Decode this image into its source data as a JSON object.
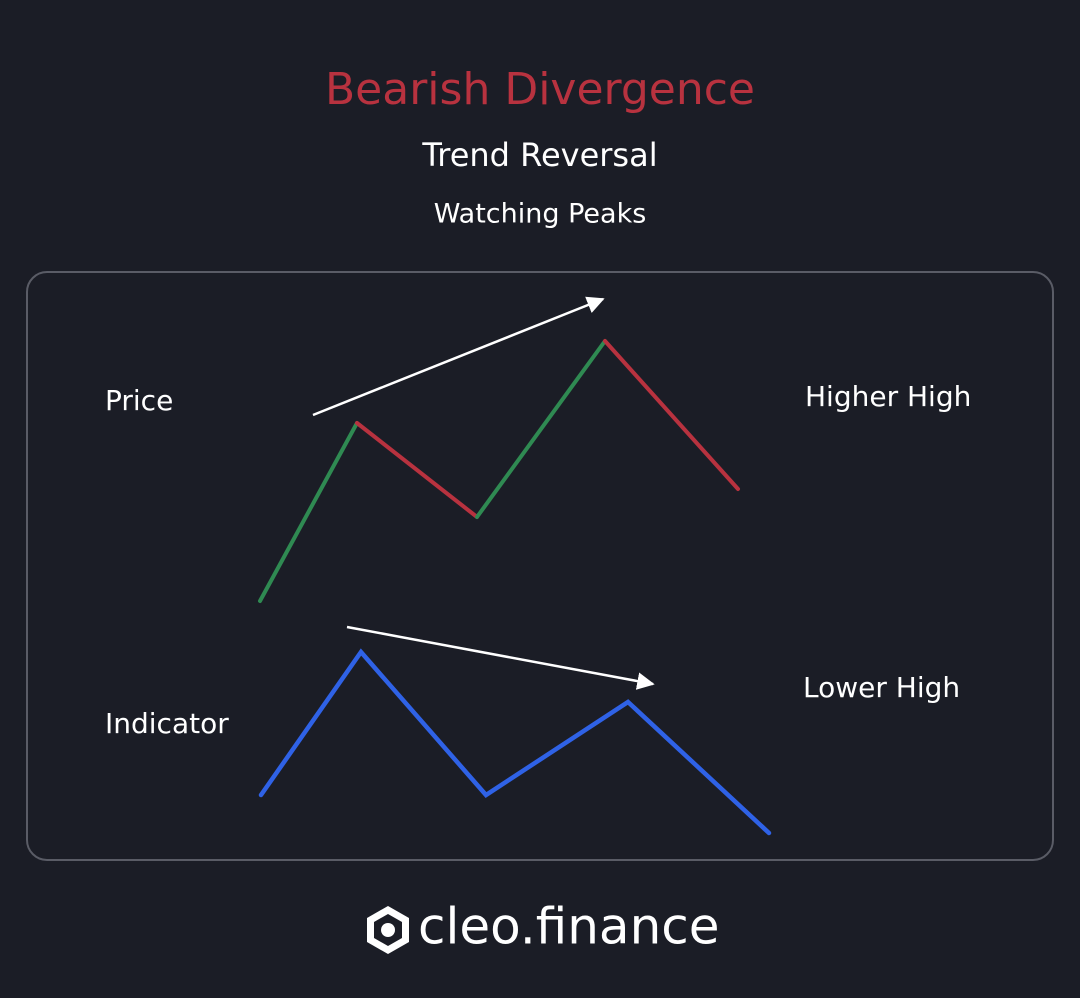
{
  "header": {
    "title": "Bearish Divergence",
    "subtitle": "Trend Reversal",
    "caption": "Watching Peaks"
  },
  "diagram": {
    "price_label": "Price",
    "price_note": "Higher High",
    "indicator_label": "Indicator",
    "indicator_note": "Lower High"
  },
  "footer": {
    "brand": "cleo.finance"
  }
}
